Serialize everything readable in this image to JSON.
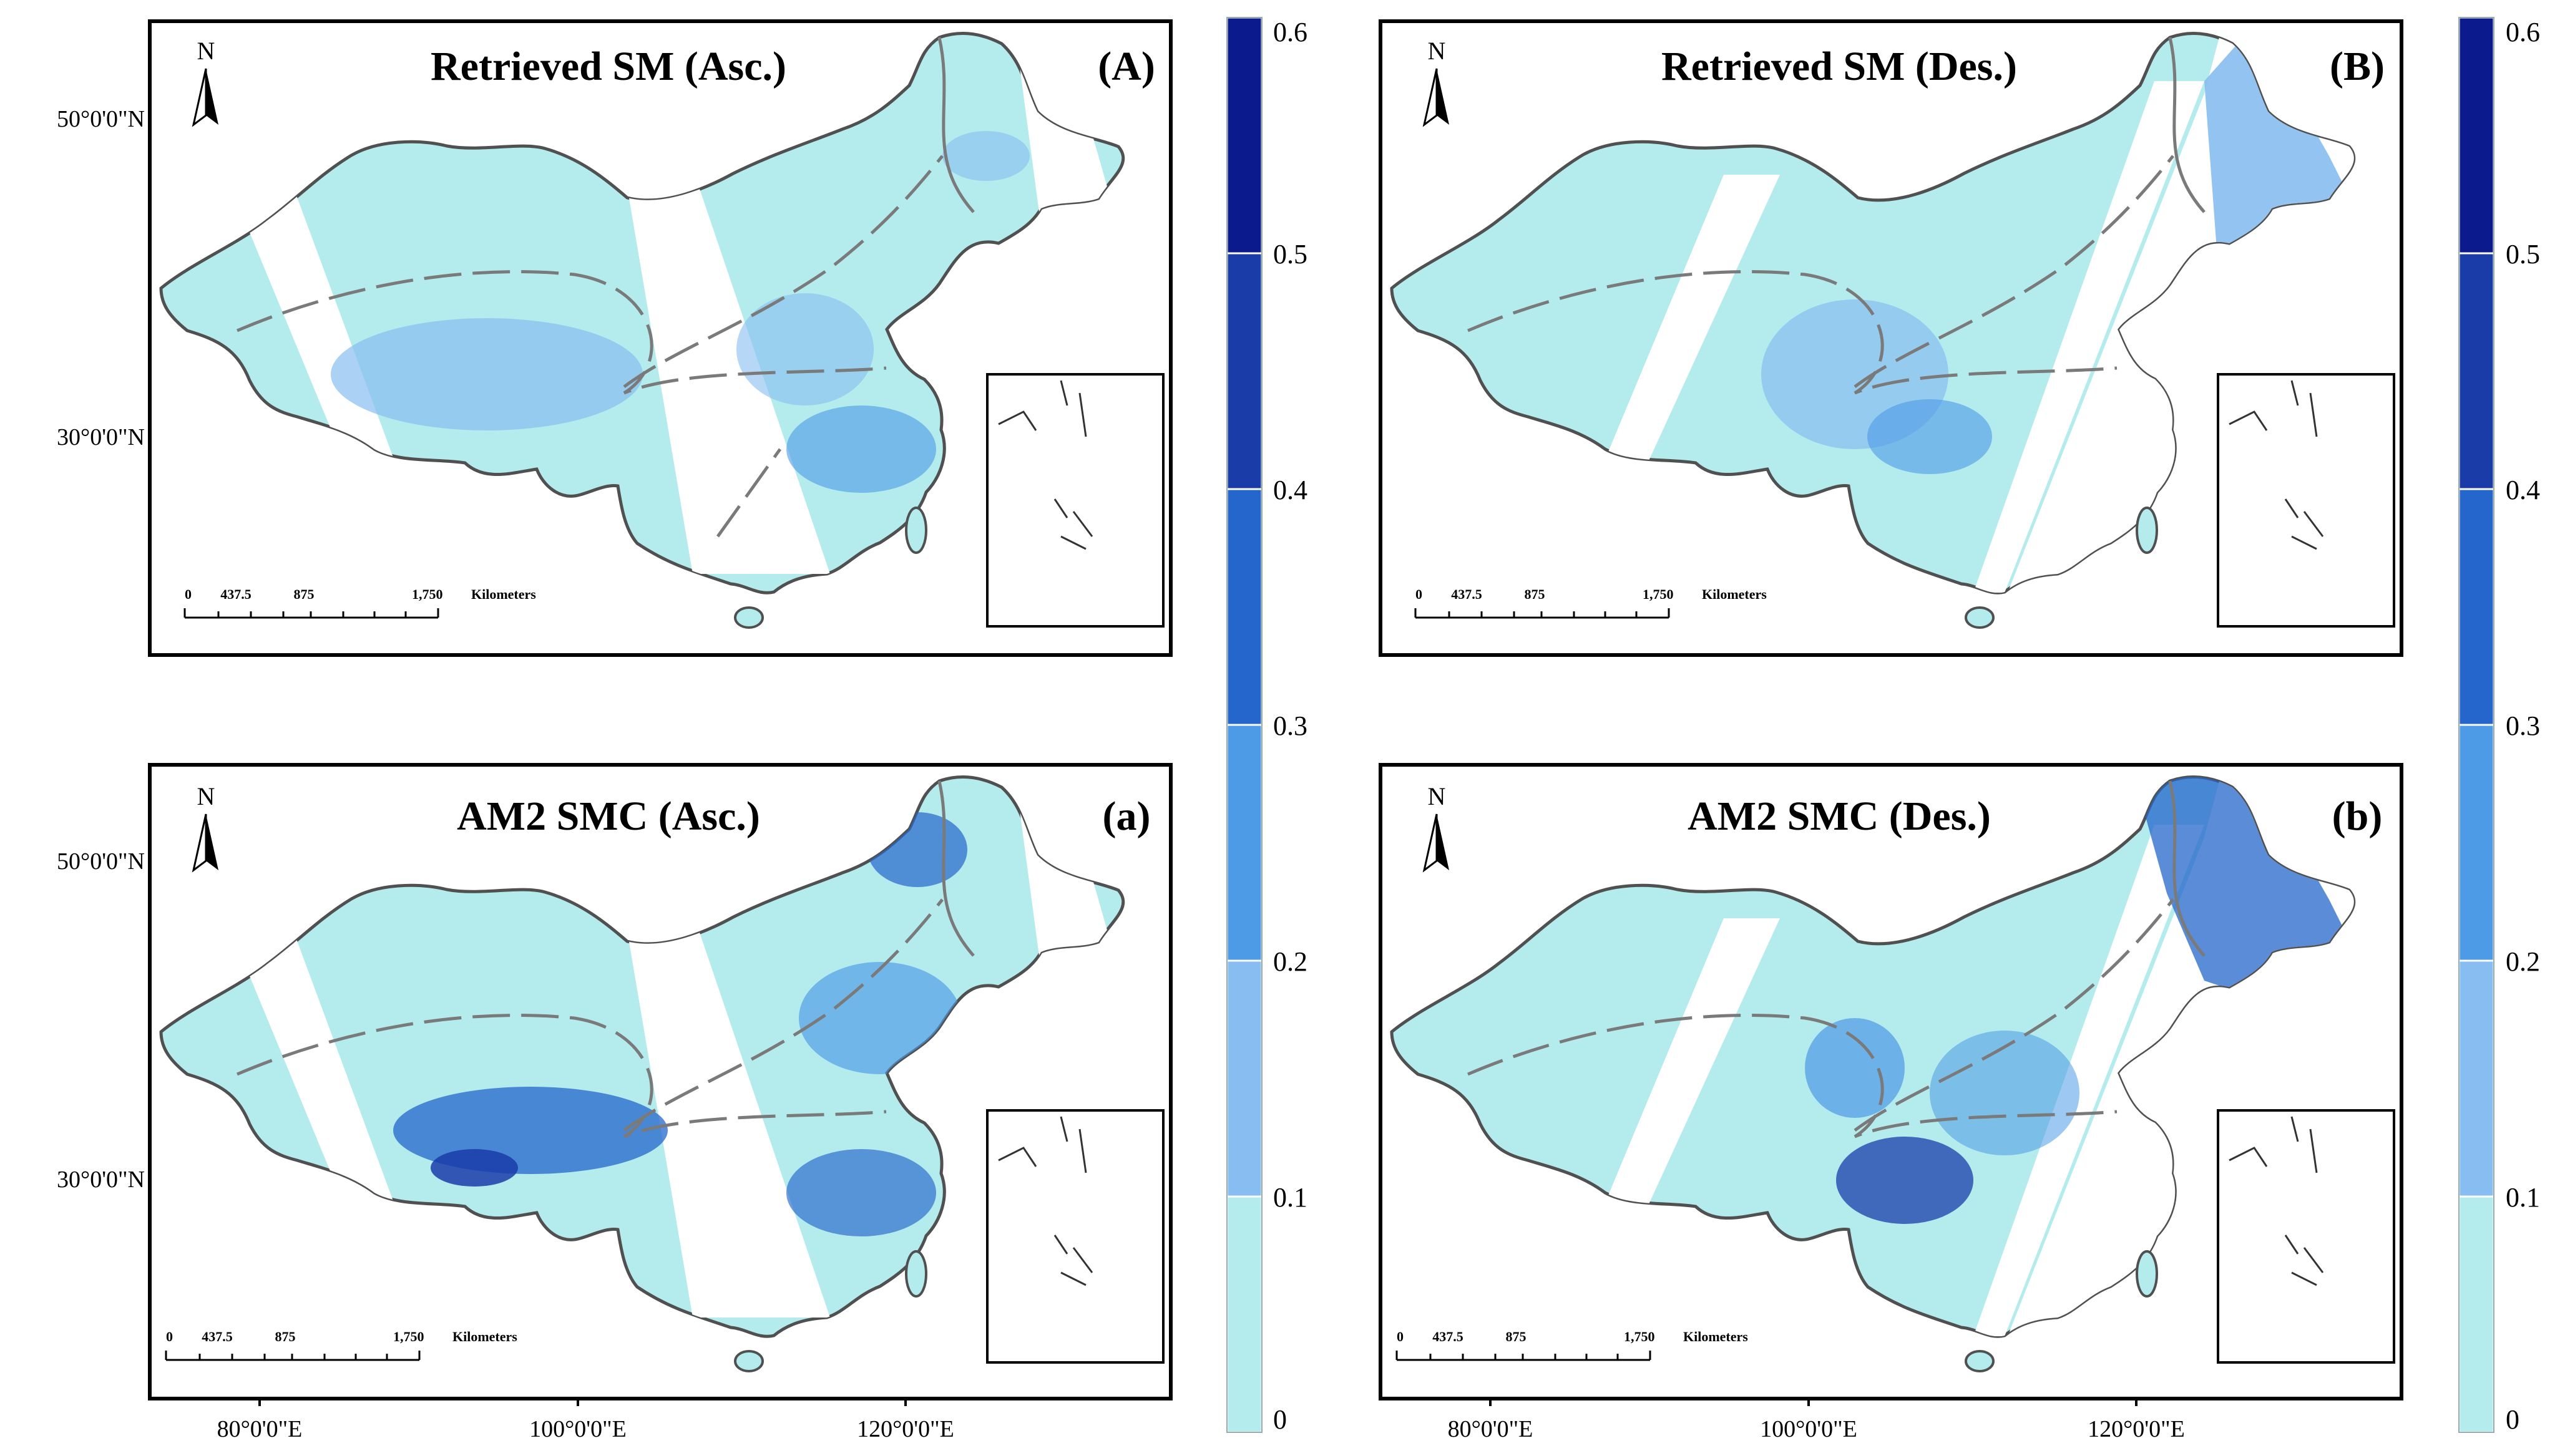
{
  "panels": [
    {
      "id": "A",
      "title": "Retrieved SM (Asc.)",
      "label": "(A)"
    },
    {
      "id": "B",
      "title": "Retrieved SM (Des.)",
      "label": "(B)"
    },
    {
      "id": "a",
      "title": "AM2 SMC (Asc.)",
      "label": "(a)"
    },
    {
      "id": "b",
      "title": "AM2 SMC (Des.)",
      "label": "(b)"
    }
  ],
  "north_label": "N",
  "lat_labels": [
    "50°0'0\"N",
    "30°0'0\"N"
  ],
  "lon_labels": [
    "80°0'0\"E",
    "100°0'0\"E",
    "120°0'0\"E"
  ],
  "scalebar": {
    "ticks": [
      "0",
      "437.5",
      "875",
      "1,750"
    ],
    "unit": "Kilometers"
  },
  "colorbar": {
    "ticks": [
      "0.6",
      "0.5",
      "0.4",
      "0.3",
      "0.2",
      "0.1",
      "0"
    ],
    "bins": [
      {
        "range": "0-0.1",
        "color": "#b4ecee"
      },
      {
        "range": "0.1-0.2",
        "color": "#87bdf0"
      },
      {
        "range": "0.2-0.3",
        "color": "#4d9ae6"
      },
      {
        "range": "0.3-0.4",
        "color": "#2466cb"
      },
      {
        "range": "0.4-0.5",
        "color": "#1a3ca9"
      },
      {
        "range": "0.5-0.6",
        "color": "#0b1a8c"
      }
    ]
  },
  "colors": {
    "frame": "#000000",
    "border": "#6a6a6a",
    "land_base": "#b4ecee"
  }
}
